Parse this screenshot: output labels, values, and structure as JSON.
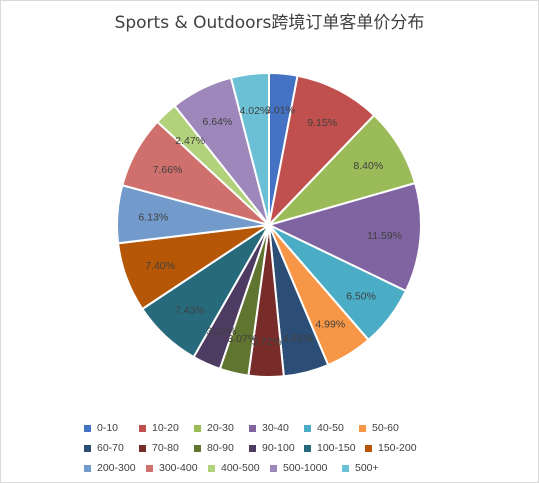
{
  "chart_data": {
    "type": "pie",
    "title": "Sports & Outdoors跨境订单客单价分布",
    "categories": [
      "0-10",
      "10-20",
      "20-30",
      "30-40",
      "40-50",
      "50-60",
      "60-70",
      "70-80",
      "80-90",
      "90-100",
      "100-150",
      "150-200",
      "200-300",
      "300-400",
      "400-500",
      "500-1000",
      "500+"
    ],
    "values": [
      3.01,
      9.15,
      8.4,
      11.59,
      6.5,
      4.99,
      4.81,
      3.72,
      3.07,
      3.02,
      7.43,
      7.4,
      6.13,
      7.66,
      2.47,
      6.64,
      4.02
    ],
    "labels": [
      "3.01%",
      "9.15%",
      "8.40%",
      "11.59%",
      "6.50%",
      "4.99%",
      "4.81%",
      "3.72%",
      "3.07%",
      "3.02%",
      "7.43%",
      "7.40%",
      "6.13%",
      "7.66%",
      "2.47%",
      "6.64%",
      "4.02%"
    ],
    "colors": [
      "#4472c4",
      "#c0504d",
      "#9bbb59",
      "#8064a2",
      "#4bacc6",
      "#f79646",
      "#2c4d75",
      "#772c2a",
      "#5f7530",
      "#4d3b62",
      "#276a7c",
      "#b65708",
      "#729aca",
      "#d0706d",
      "#b1d17a",
      "#9d87bb",
      "#6cc0d6"
    ],
    "legend_position": "bottom"
  }
}
